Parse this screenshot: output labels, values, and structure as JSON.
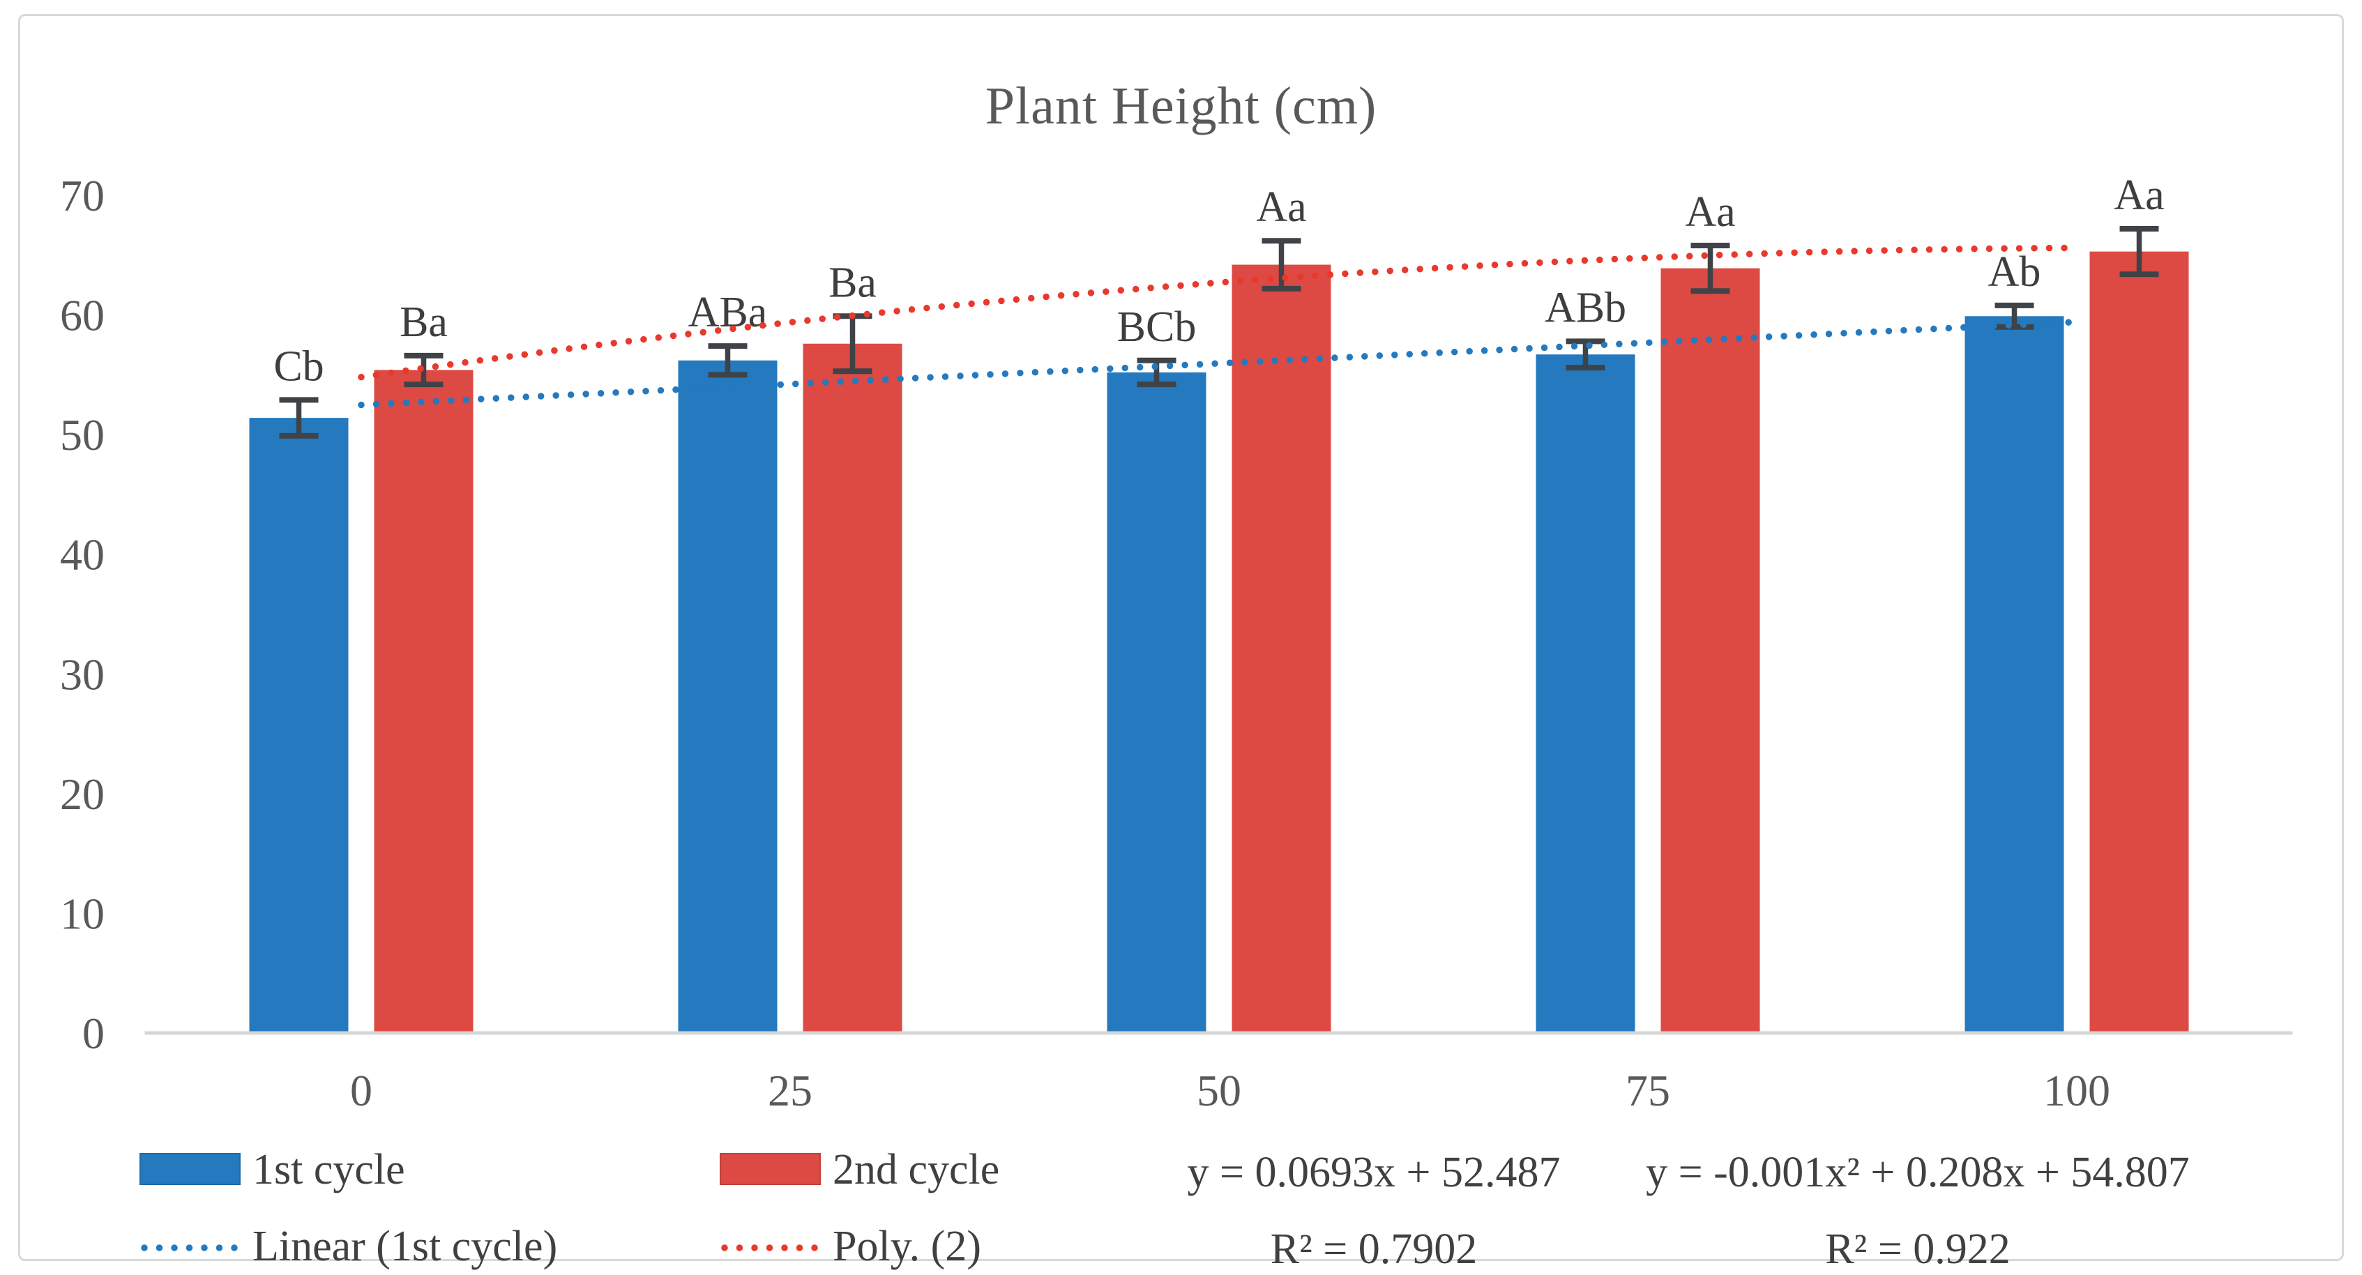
{
  "chart_data": {
    "type": "bar",
    "title": "Plant Height (cm)",
    "categories": [
      "0",
      "25",
      "50",
      "75",
      "100"
    ],
    "series": [
      {
        "name": "1st cycle",
        "color": "#2579BE",
        "values": [
          51.4,
          56.2,
          55.2,
          56.7,
          59.9
        ],
        "errors": [
          1.5,
          1.2,
          1.0,
          1.1,
          0.9
        ],
        "point_labels": [
          "Cb",
          "ABa",
          "BCb",
          "ABb",
          "Ab"
        ]
      },
      {
        "name": "2nd cycle",
        "color": "#DC4A43",
        "values": [
          55.4,
          57.6,
          64.2,
          63.9,
          65.3
        ],
        "errors": [
          1.2,
          2.3,
          2.0,
          1.9,
          1.9
        ],
        "point_labels": [
          "Ba",
          "Ba",
          "Aa",
          "Aa",
          "Aa"
        ]
      }
    ],
    "trendlines": [
      {
        "name": "Linear (1st cycle)",
        "type": "linear",
        "color": "#2579BE",
        "coefficients": {
          "slope": 0.0693,
          "intercept": 52.487
        },
        "equation": "y = 0.0693x + 52.487",
        "r_squared": "R² = 0.7902"
      },
      {
        "name": "Poly. (2)",
        "type": "polynomial",
        "color": "#E8392C",
        "coefficients": {
          "a": -0.001,
          "b": 0.208,
          "c": 54.807
        },
        "equation": "y = -0.001x² + 0.208x + 54.807",
        "r_squared": "R² = 0.922"
      }
    ],
    "x_domain": [
      0,
      100
    ],
    "ylim": [
      0,
      70
    ],
    "y_ticks": [
      0,
      10,
      20,
      30,
      40,
      50,
      60,
      70
    ],
    "grid": false,
    "legend_position": "bottom",
    "error_bar_color": "#3F4348",
    "axis_line_color": "#D6D6D6",
    "tick_label_color": "#595959",
    "annotation_color": "#3E3E3E",
    "title_color": "#595959"
  }
}
